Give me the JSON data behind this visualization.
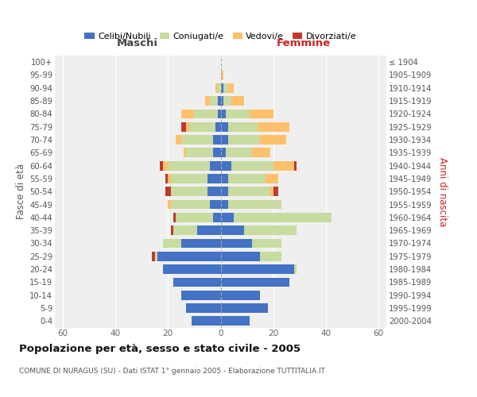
{
  "age_groups_bottom_to_top": [
    "0-4",
    "5-9",
    "10-14",
    "15-19",
    "20-24",
    "25-29",
    "30-34",
    "35-39",
    "40-44",
    "45-49",
    "50-54",
    "55-59",
    "60-64",
    "65-69",
    "70-74",
    "75-79",
    "80-84",
    "85-89",
    "90-94",
    "95-99",
    "100+"
  ],
  "birth_years_bottom_to_top": [
    "2000-2004",
    "1995-1999",
    "1990-1994",
    "1985-1989",
    "1980-1984",
    "1975-1979",
    "1970-1974",
    "1965-1969",
    "1960-1964",
    "1955-1959",
    "1950-1954",
    "1945-1949",
    "1940-1944",
    "1935-1939",
    "1930-1934",
    "1925-1929",
    "1920-1924",
    "1915-1919",
    "1910-1914",
    "1905-1909",
    "≤ 1904"
  ],
  "male_celibe": [
    11,
    13,
    15,
    18,
    22,
    24,
    15,
    9,
    3,
    4,
    5,
    5,
    4,
    3,
    3,
    2,
    1,
    1,
    0,
    0,
    0
  ],
  "male_coniugato": [
    0,
    0,
    0,
    0,
    0,
    1,
    7,
    9,
    14,
    15,
    14,
    14,
    16,
    10,
    12,
    10,
    9,
    3,
    1,
    0,
    0
  ],
  "male_vedovo": [
    0,
    0,
    0,
    0,
    0,
    0,
    0,
    0,
    0,
    1,
    0,
    1,
    2,
    1,
    2,
    1,
    5,
    2,
    1,
    0,
    0
  ],
  "male_divorziato": [
    0,
    0,
    0,
    0,
    0,
    1,
    0,
    1,
    1,
    0,
    2,
    1,
    1,
    0,
    0,
    2,
    0,
    0,
    0,
    0,
    0
  ],
  "female_celibe": [
    11,
    18,
    15,
    26,
    28,
    15,
    12,
    9,
    5,
    3,
    3,
    3,
    4,
    2,
    3,
    3,
    2,
    1,
    1,
    0,
    0
  ],
  "female_coniugato": [
    0,
    0,
    0,
    0,
    1,
    8,
    11,
    20,
    37,
    20,
    16,
    14,
    16,
    10,
    12,
    11,
    9,
    3,
    2,
    0,
    0
  ],
  "female_vedovo": [
    0,
    0,
    0,
    0,
    0,
    0,
    0,
    0,
    0,
    0,
    1,
    5,
    8,
    7,
    10,
    12,
    9,
    5,
    2,
    1,
    0
  ],
  "female_divorziata": [
    0,
    0,
    0,
    0,
    0,
    0,
    0,
    0,
    0,
    0,
    2,
    0,
    1,
    0,
    0,
    0,
    0,
    0,
    0,
    0,
    0
  ],
  "colors": {
    "celibe": "#4472C4",
    "coniugato": "#c8dba0",
    "vedovo": "#ffc06a",
    "divorziato": "#c0392b"
  },
  "title": "Popolazione per età, sesso e stato civile - 2005",
  "subtitle": "COMUNE DI NURAGUS (SU) - Dati ISTAT 1° gennaio 2005 - Elaborazione TUTTITALIA.IT",
  "label_maschi": "Maschi",
  "label_femmine": "Femmine",
  "ylabel_left": "Fasce di età",
  "ylabel_right": "Anni di nascita",
  "xlim": 63,
  "xticks": [
    -60,
    -40,
    -20,
    0,
    20,
    40,
    60
  ],
  "legend_labels": [
    "Celibi/Nubili",
    "Coniugati/e",
    "Vedovi/e",
    "Divorziati/e"
  ],
  "bg_color": "#efefef",
  "maschi_color": "#444444",
  "femmine_color": "#cc2222"
}
